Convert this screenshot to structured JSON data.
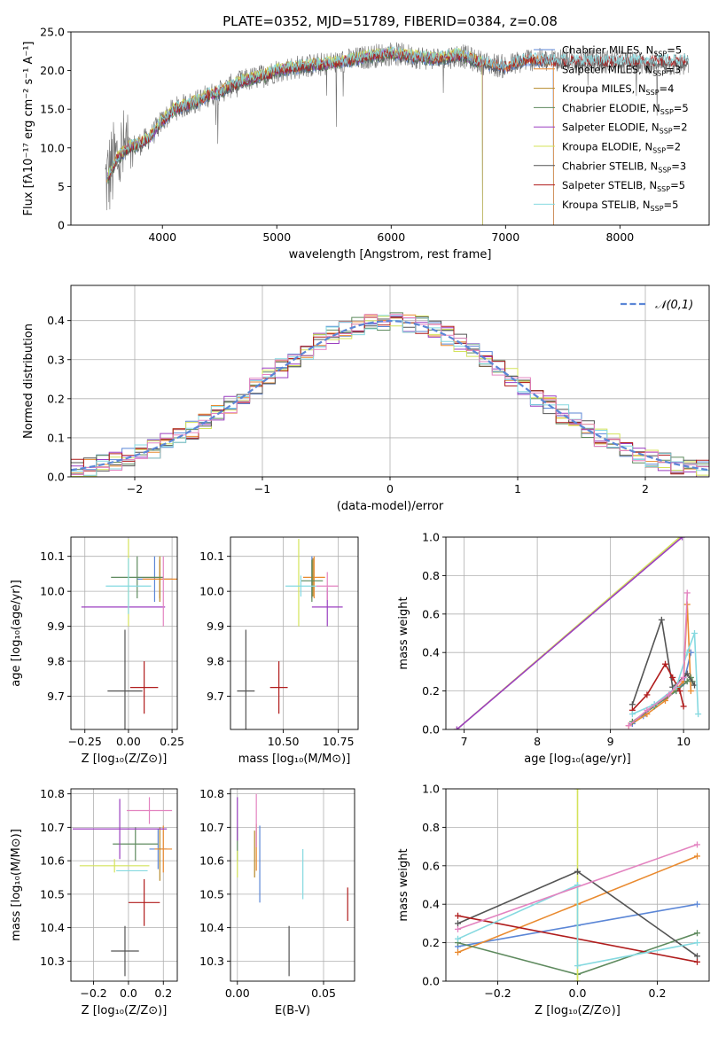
{
  "page": {
    "title": "PLATE=0352, MJD=51789, FIBERID=0384, z=0.08"
  },
  "colors": {
    "chabrier_miles": "#5b86d6",
    "salpeter_miles": "#e98a2f",
    "kroupa_miles": "#b5892a",
    "chabrier_elodie": "#5e8a5e",
    "salpeter_elodie": "#9b3fc0",
    "kroupa_elodie": "#d4e35a",
    "chabrier_stelib": "#545454",
    "salpeter_stelib": "#b01c1c",
    "kroupa_stelib": "#85d9e0",
    "extra_pink": "#e383c0",
    "normal_dash": "#5b86d6"
  },
  "chart_data": [
    {
      "id": "spectrum",
      "type": "line",
      "title": "PLATE=0352, MJD=51789, FIBERID=0384, z=0.08",
      "xlabel": "wavelength [Angstrom, rest frame]",
      "ylabel": "Flux [fλ10⁻¹⁷ erg cm⁻² s⁻¹ A⁻¹]",
      "xlim": [
        3200,
        8780
      ],
      "ylim": [
        0,
        25
      ],
      "xticks": [
        4000,
        5000,
        6000,
        7000,
        8000
      ],
      "yticks": [
        0,
        5,
        10,
        15,
        20,
        25
      ],
      "legend_position": "right",
      "data_envelope": {
        "x": [
          3500,
          3600,
          3700,
          3800,
          3900,
          4000,
          4100,
          4200,
          4300,
          4400,
          4500,
          4600,
          4700,
          4800,
          4900,
          5000,
          5200,
          5400,
          5600,
          5800,
          6000,
          6200,
          6400,
          6600,
          6800,
          7000,
          7200,
          7400
        ],
        "y": [
          5.5,
          8.5,
          10.0,
          10.5,
          11.5,
          13.5,
          15.0,
          15.5,
          16.0,
          16.8,
          17.2,
          18.0,
          18.6,
          19.0,
          19.4,
          20.0,
          20.5,
          20.8,
          21.2,
          21.8,
          22.2,
          21.8,
          21.5,
          22.0,
          21.0,
          20.5,
          21.5,
          21.2
        ]
      },
      "series": [
        {
          "name": "Chabrier MILES, N",
          "sub": "SSP",
          "suffix": "=5",
          "color_key": "chabrier_miles",
          "end": 7420
        },
        {
          "name": "Salpeter MILES, N",
          "sub": "SSP",
          "suffix": "=3",
          "color_key": "salpeter_miles",
          "end": 7420
        },
        {
          "name": "Kroupa MILES, N",
          "sub": "SSP",
          "suffix": "=4",
          "color_key": "kroupa_miles",
          "end": 6800
        },
        {
          "name": "Chabrier ELODIE, N",
          "sub": "SSP",
          "suffix": "=5",
          "color_key": "chabrier_elodie",
          "end": 6800
        },
        {
          "name": "Salpeter ELODIE, N",
          "sub": "SSP",
          "suffix": "=2",
          "color_key": "salpeter_elodie",
          "end": 6800
        },
        {
          "name": "Kroupa ELODIE, N",
          "sub": "SSP",
          "suffix": "=2",
          "color_key": "kroupa_elodie",
          "end": 6800
        },
        {
          "name": "Chabrier STELIB, N",
          "sub": "SSP",
          "suffix": "=3",
          "color_key": "chabrier_stelib",
          "end": 8600
        },
        {
          "name": "Salpeter STELIB, N",
          "sub": "SSP",
          "suffix": "=5",
          "color_key": "salpeter_stelib",
          "end": 8600
        },
        {
          "name": "Kroupa STELIB, N",
          "sub": "SSP",
          "suffix": "=5",
          "color_key": "kroupa_stelib",
          "end": 8600
        }
      ]
    },
    {
      "id": "residuals",
      "type": "histogram",
      "xlabel": "(data-model)/error",
      "ylabel": "Normed distribution",
      "xlim": [
        -2.5,
        2.5
      ],
      "ylim": [
        0,
        0.49
      ],
      "xticks": [
        -2,
        -1,
        0,
        1,
        2
      ],
      "yticks": [
        0.0,
        0.1,
        0.2,
        0.3,
        0.4
      ],
      "grid": true,
      "bin_width": 0.1,
      "legend": {
        "label": "𝒩(0,1)",
        "position": "top-right"
      },
      "series_color_keys": [
        "chabrier_miles",
        "salpeter_miles",
        "chabrier_elodie",
        "salpeter_elodie",
        "kroupa_elodie",
        "chabrier_stelib",
        "salpeter_stelib",
        "kroupa_stelib",
        "extra_pink"
      ]
    },
    {
      "id": "age_vs_Z",
      "type": "errorbar",
      "xlabel": "Z [log₁₀(Z/Z⊙)]",
      "ylabel": "age  [log₁₀(age/yr)]",
      "xlim": [
        -0.33,
        0.28
      ],
      "ylim": [
        9.605,
        10.155
      ],
      "xticks": [
        -0.25,
        0.0,
        0.25
      ],
      "xticklabels": [
        "−0.25",
        "0.00",
        "0.25"
      ],
      "yticks": [
        9.7,
        9.8,
        9.9,
        10.0,
        10.1
      ],
      "grid": true,
      "points": [
        {
          "x": 0.15,
          "y": 10.035,
          "xerr": 0.1,
          "yerr": 0.065,
          "color_key": "chabrier_miles"
        },
        {
          "x": 0.18,
          "y": 10.035,
          "xerr": 0.1,
          "yerr": 0.055,
          "color_key": "salpeter_miles"
        },
        {
          "x": 0.18,
          "y": 10.035,
          "xerr": 0.0,
          "yerr": 0.065,
          "color_key": "kroupa_miles"
        },
        {
          "x": 0.05,
          "y": 10.04,
          "xerr": 0.15,
          "yerr": 0.06,
          "color_key": "chabrier_elodie"
        },
        {
          "x": -0.03,
          "y": 9.955,
          "xerr": 0.24,
          "yerr": 0.0,
          "color_key": "salpeter_elodie"
        },
        {
          "x": 0.0,
          "y": 10.025,
          "xerr": 0.0,
          "yerr": 0.125,
          "color_key": "kroupa_elodie"
        },
        {
          "x": -0.02,
          "y": 9.715,
          "xerr": 0.1,
          "yerr": 0.175,
          "color_key": "chabrier_stelib"
        },
        {
          "x": 0.09,
          "y": 9.725,
          "xerr": 0.08,
          "yerr": 0.075,
          "color_key": "salpeter_stelib"
        },
        {
          "x": 0.0,
          "y": 10.015,
          "xerr": 0.13,
          "yerr": 0.08,
          "color_key": "kroupa_stelib"
        },
        {
          "x": 0.2,
          "y": 10.0,
          "xerr": 0.0,
          "yerr": 0.1,
          "color_key": "extra_pink"
        }
      ]
    },
    {
      "id": "age_vs_mass",
      "type": "errorbar",
      "xlabel": "mass [log₁₀(M/M⊙)]",
      "ylabel": "",
      "xlim": [
        10.26,
        10.84
      ],
      "ylim": [
        9.605,
        10.155
      ],
      "xticks": [
        10.25,
        10.5,
        10.75
      ],
      "xticklabels": [
        "10.25",
        "10.50",
        "10.75"
      ],
      "yticks": [
        9.7,
        9.8,
        9.9,
        10.0,
        10.1
      ],
      "grid": true,
      "points": [
        {
          "x": 10.63,
          "y": 10.04,
          "xerr": 0.0,
          "yerr": 0.06,
          "color_key": "chabrier_miles"
        },
        {
          "x": 10.64,
          "y": 10.04,
          "xerr": 0.05,
          "yerr": 0.06,
          "color_key": "salpeter_miles"
        },
        {
          "x": 10.635,
          "y": 10.04,
          "xerr": 0.0,
          "yerr": 0.055,
          "color_key": "kroupa_miles"
        },
        {
          "x": 10.63,
          "y": 10.03,
          "xerr": 0.05,
          "yerr": 0.06,
          "color_key": "chabrier_elodie"
        },
        {
          "x": 10.7,
          "y": 9.955,
          "xerr": 0.07,
          "yerr": 0.055,
          "color_key": "salpeter_elodie"
        },
        {
          "x": 10.57,
          "y": 10.025,
          "xerr": 0.0,
          "yerr": 0.125,
          "color_key": "kroupa_elodie"
        },
        {
          "x": 10.33,
          "y": 9.715,
          "xerr": 0.04,
          "yerr": 0.175,
          "color_key": "chabrier_stelib"
        },
        {
          "x": 10.48,
          "y": 9.725,
          "xerr": 0.04,
          "yerr": 0.075,
          "color_key": "salpeter_stelib"
        },
        {
          "x": 10.58,
          "y": 10.015,
          "xerr": 0.07,
          "yerr": 0.03,
          "color_key": "kroupa_stelib"
        },
        {
          "x": 10.7,
          "y": 10.015,
          "xerr": 0.05,
          "yerr": 0.04,
          "color_key": "extra_pink"
        }
      ]
    },
    {
      "id": "weight_vs_age",
      "type": "line",
      "xlabel": "age  [log₁₀(age/yr)]",
      "ylabel": "mass weight",
      "xlim": [
        6.75,
        10.35
      ],
      "ylim": [
        0.0,
        1.0
      ],
      "xticks": [
        7,
        8,
        9,
        10
      ],
      "yticks": [
        0.0,
        0.2,
        0.4,
        0.6,
        0.8,
        1.0
      ],
      "grid": true,
      "series": [
        {
          "color_key": "kroupa_elodie",
          "x": [
            6.9,
            9.95
          ],
          "y": [
            0.0,
            1.0
          ]
        },
        {
          "color_key": "salpeter_elodie",
          "x": [
            6.9,
            9.98
          ],
          "y": [
            0.0,
            1.0
          ]
        },
        {
          "color_key": "chabrier_miles",
          "x": [
            9.3,
            9.45,
            9.6,
            9.75,
            9.9,
            10.0,
            10.1
          ],
          "y": [
            0.03,
            0.07,
            0.13,
            0.16,
            0.2,
            0.24,
            0.4
          ]
        },
        {
          "color_key": "salpeter_miles",
          "x": [
            9.25,
            9.5,
            9.75,
            10.0,
            10.05,
            10.1
          ],
          "y": [
            0.02,
            0.08,
            0.15,
            0.25,
            0.65,
            0.2
          ]
        },
        {
          "color_key": "chabrier_elodie",
          "x": [
            9.3,
            9.6,
            9.9,
            10.05,
            10.1,
            10.12
          ],
          "y": [
            0.04,
            0.12,
            0.2,
            0.25,
            0.27,
            0.25
          ]
        },
        {
          "color_key": "chabrier_stelib",
          "x": [
            9.3,
            9.7,
            9.85,
            10.05,
            10.15
          ],
          "y": [
            0.13,
            0.57,
            0.22,
            0.29,
            0.23
          ]
        },
        {
          "color_key": "salpeter_stelib",
          "x": [
            9.3,
            9.5,
            9.75,
            9.85,
            9.95,
            10.0
          ],
          "y": [
            0.1,
            0.18,
            0.34,
            0.27,
            0.2,
            0.12
          ]
        },
        {
          "color_key": "kroupa_stelib",
          "x": [
            9.3,
            9.6,
            9.9,
            10.05,
            10.15,
            10.2
          ],
          "y": [
            0.08,
            0.13,
            0.22,
            0.4,
            0.5,
            0.08
          ]
        },
        {
          "color_key": "extra_pink",
          "x": [
            9.25,
            9.5,
            9.8,
            10.0,
            10.05
          ],
          "y": [
            0.02,
            0.1,
            0.18,
            0.27,
            0.71
          ]
        }
      ]
    },
    {
      "id": "mass_vs_Z",
      "type": "errorbar",
      "xlabel": "Z [log₁₀(Z/Z⊙)]",
      "ylabel": "mass [log₁₀(M/M⊙)]",
      "xlim": [
        -0.33,
        0.28
      ],
      "ylim": [
        10.24,
        10.815
      ],
      "xticks": [
        -0.2,
        0.0,
        0.2
      ],
      "xticklabels": [
        "−0.2",
        "0.0",
        "0.2"
      ],
      "yticks": [
        10.3,
        10.4,
        10.5,
        10.6,
        10.7,
        10.8
      ],
      "grid": true,
      "points": [
        {
          "x": 0.17,
          "y": 10.635,
          "xerr": 0.05,
          "yerr": 0.06,
          "color_key": "chabrier_miles"
        },
        {
          "x": 0.2,
          "y": 10.635,
          "xerr": 0.05,
          "yerr": 0.07,
          "color_key": "salpeter_miles"
        },
        {
          "x": 0.18,
          "y": 10.62,
          "xerr": 0.0,
          "yerr": 0.08,
          "color_key": "kroupa_miles"
        },
        {
          "x": 0.04,
          "y": 10.65,
          "xerr": 0.13,
          "yerr": 0.05,
          "color_key": "chabrier_elodie"
        },
        {
          "x": -0.05,
          "y": 10.695,
          "xerr": 0.27,
          "yerr": 0.09,
          "color_key": "salpeter_elodie"
        },
        {
          "x": -0.08,
          "y": 10.585,
          "xerr": 0.2,
          "yerr": 0.02,
          "color_key": "kroupa_elodie"
        },
        {
          "x": -0.02,
          "y": 10.33,
          "xerr": 0.08,
          "yerr": 0.075,
          "color_key": "chabrier_stelib"
        },
        {
          "x": 0.09,
          "y": 10.475,
          "xerr": 0.09,
          "yerr": 0.07,
          "color_key": "salpeter_stelib"
        },
        {
          "x": 0.02,
          "y": 10.57,
          "xerr": 0.09,
          "yerr": 0.0,
          "color_key": "kroupa_stelib"
        },
        {
          "x": 0.12,
          "y": 10.75,
          "xerr": 0.13,
          "yerr": 0.04,
          "color_key": "extra_pink"
        }
      ]
    },
    {
      "id": "mass_vs_ebv",
      "type": "errorbar",
      "xlabel": "E(B-V)",
      "ylabel": "",
      "xlim": [
        -0.004,
        0.068
      ],
      "ylim": [
        10.24,
        10.815
      ],
      "xticks": [
        0.0,
        0.05
      ],
      "xticklabels": [
        "0.00",
        "0.05"
      ],
      "yticks": [
        10.3,
        10.4,
        10.5,
        10.6,
        10.7,
        10.8
      ],
      "grid": true,
      "points": [
        {
          "x": 0.013,
          "y": 10.59,
          "xerr": 0.0,
          "yerr": 0.115,
          "color_key": "chabrier_miles"
        },
        {
          "x": 0.011,
          "y": 10.64,
          "xerr": 0.0,
          "yerr": 0.07,
          "color_key": "salpeter_miles"
        },
        {
          "x": 0.01,
          "y": 10.62,
          "xerr": 0.0,
          "yerr": 0.07,
          "color_key": "kroupa_miles"
        },
        {
          "x": 0.0,
          "y": 10.65,
          "xerr": 0.0,
          "yerr": 0.05,
          "color_key": "chabrier_elodie"
        },
        {
          "x": 0.0,
          "y": 10.725,
          "xerr": 0.0,
          "yerr": 0.065,
          "color_key": "salpeter_elodie"
        },
        {
          "x": 0.0,
          "y": 10.59,
          "xerr": 0.0,
          "yerr": 0.04,
          "color_key": "kroupa_elodie"
        },
        {
          "x": 0.03,
          "y": 10.33,
          "xerr": 0.0,
          "yerr": 0.075,
          "color_key": "chabrier_stelib"
        },
        {
          "x": 0.064,
          "y": 10.47,
          "xerr": 0.0,
          "yerr": 0.05,
          "color_key": "salpeter_stelib"
        },
        {
          "x": 0.038,
          "y": 10.56,
          "xerr": 0.0,
          "yerr": 0.075,
          "color_key": "kroupa_stelib"
        },
        {
          "x": 0.011,
          "y": 10.72,
          "xerr": 0.0,
          "yerr": 0.08,
          "color_key": "extra_pink"
        }
      ]
    },
    {
      "id": "weight_vs_Z",
      "type": "line",
      "xlabel": "Z [log₁₀(Z/Z⊙)]",
      "ylabel": "mass weight",
      "xlim": [
        -0.33,
        0.33
      ],
      "ylim": [
        0.0,
        1.0
      ],
      "xticks": [
        -0.2,
        0.0,
        0.2
      ],
      "xticklabels": [
        "−0.2",
        "0.0",
        "0.2"
      ],
      "yticks": [
        0.0,
        0.2,
        0.4,
        0.6,
        0.8,
        1.0
      ],
      "grid": true,
      "series": [
        {
          "color_key": "chabrier_miles",
          "x": [
            -0.3,
            0.0,
            0.3
          ],
          "y": [
            0.18,
            0.29,
            0.4
          ]
        },
        {
          "color_key": "salpeter_miles",
          "x": [
            -0.3,
            0.0,
            0.3
          ],
          "y": [
            0.15,
            0.4,
            0.65
          ]
        },
        {
          "color_key": "chabrier_elodie",
          "x": [
            -0.3,
            0.0,
            0.3
          ],
          "y": [
            0.2,
            0.035,
            0.25
          ]
        },
        {
          "color_key": "kroupa_elodie",
          "x": [
            0.0,
            0.0
          ],
          "y": [
            0.0,
            1.0
          ]
        },
        {
          "color_key": "chabrier_stelib",
          "x": [
            -0.3,
            0.0,
            0.3
          ],
          "y": [
            0.3,
            0.57,
            0.13
          ]
        },
        {
          "color_key": "salpeter_stelib",
          "x": [
            -0.3,
            0.3
          ],
          "y": [
            0.34,
            0.1
          ]
        },
        {
          "color_key": "kroupa_stelib",
          "x": [
            -0.3,
            0.0,
            0.0,
            0.3
          ],
          "y": [
            0.22,
            0.5,
            0.08,
            0.2
          ]
        },
        {
          "color_key": "extra_pink",
          "x": [
            -0.3,
            0.3
          ],
          "y": [
            0.27,
            0.71
          ]
        }
      ]
    }
  ]
}
